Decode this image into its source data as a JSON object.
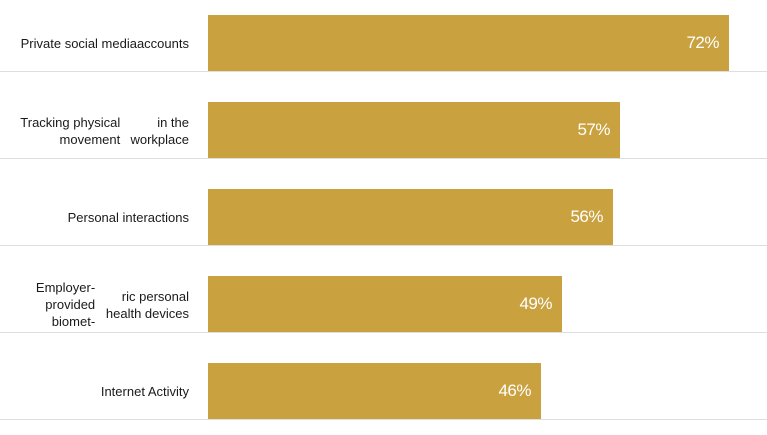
{
  "chart_data": {
    "type": "bar",
    "orientation": "horizontal",
    "categories": [
      "Private social media accounts",
      "Tracking physical movement in the workplace",
      "Personal interactions",
      "Employer-provided biomet-ric personal health devices",
      "Internet Activity"
    ],
    "label_lines": [
      [
        "Private social media",
        "accounts"
      ],
      [
        "Tracking physical movement",
        "in the workplace"
      ],
      [
        "Personal interactions"
      ],
      [
        "Employer-provided biomet-",
        "ric personal health devices"
      ],
      [
        "Internet Activity"
      ]
    ],
    "values": [
      72,
      57,
      56,
      49,
      46
    ],
    "value_labels": [
      "72%",
      "57%",
      "56%",
      "49%",
      "46%"
    ],
    "xlim": [
      0,
      100
    ],
    "title": "",
    "xlabel": "",
    "ylabel": "",
    "bar_color": "#c9a13f",
    "value_label_color": "#ffffff"
  }
}
